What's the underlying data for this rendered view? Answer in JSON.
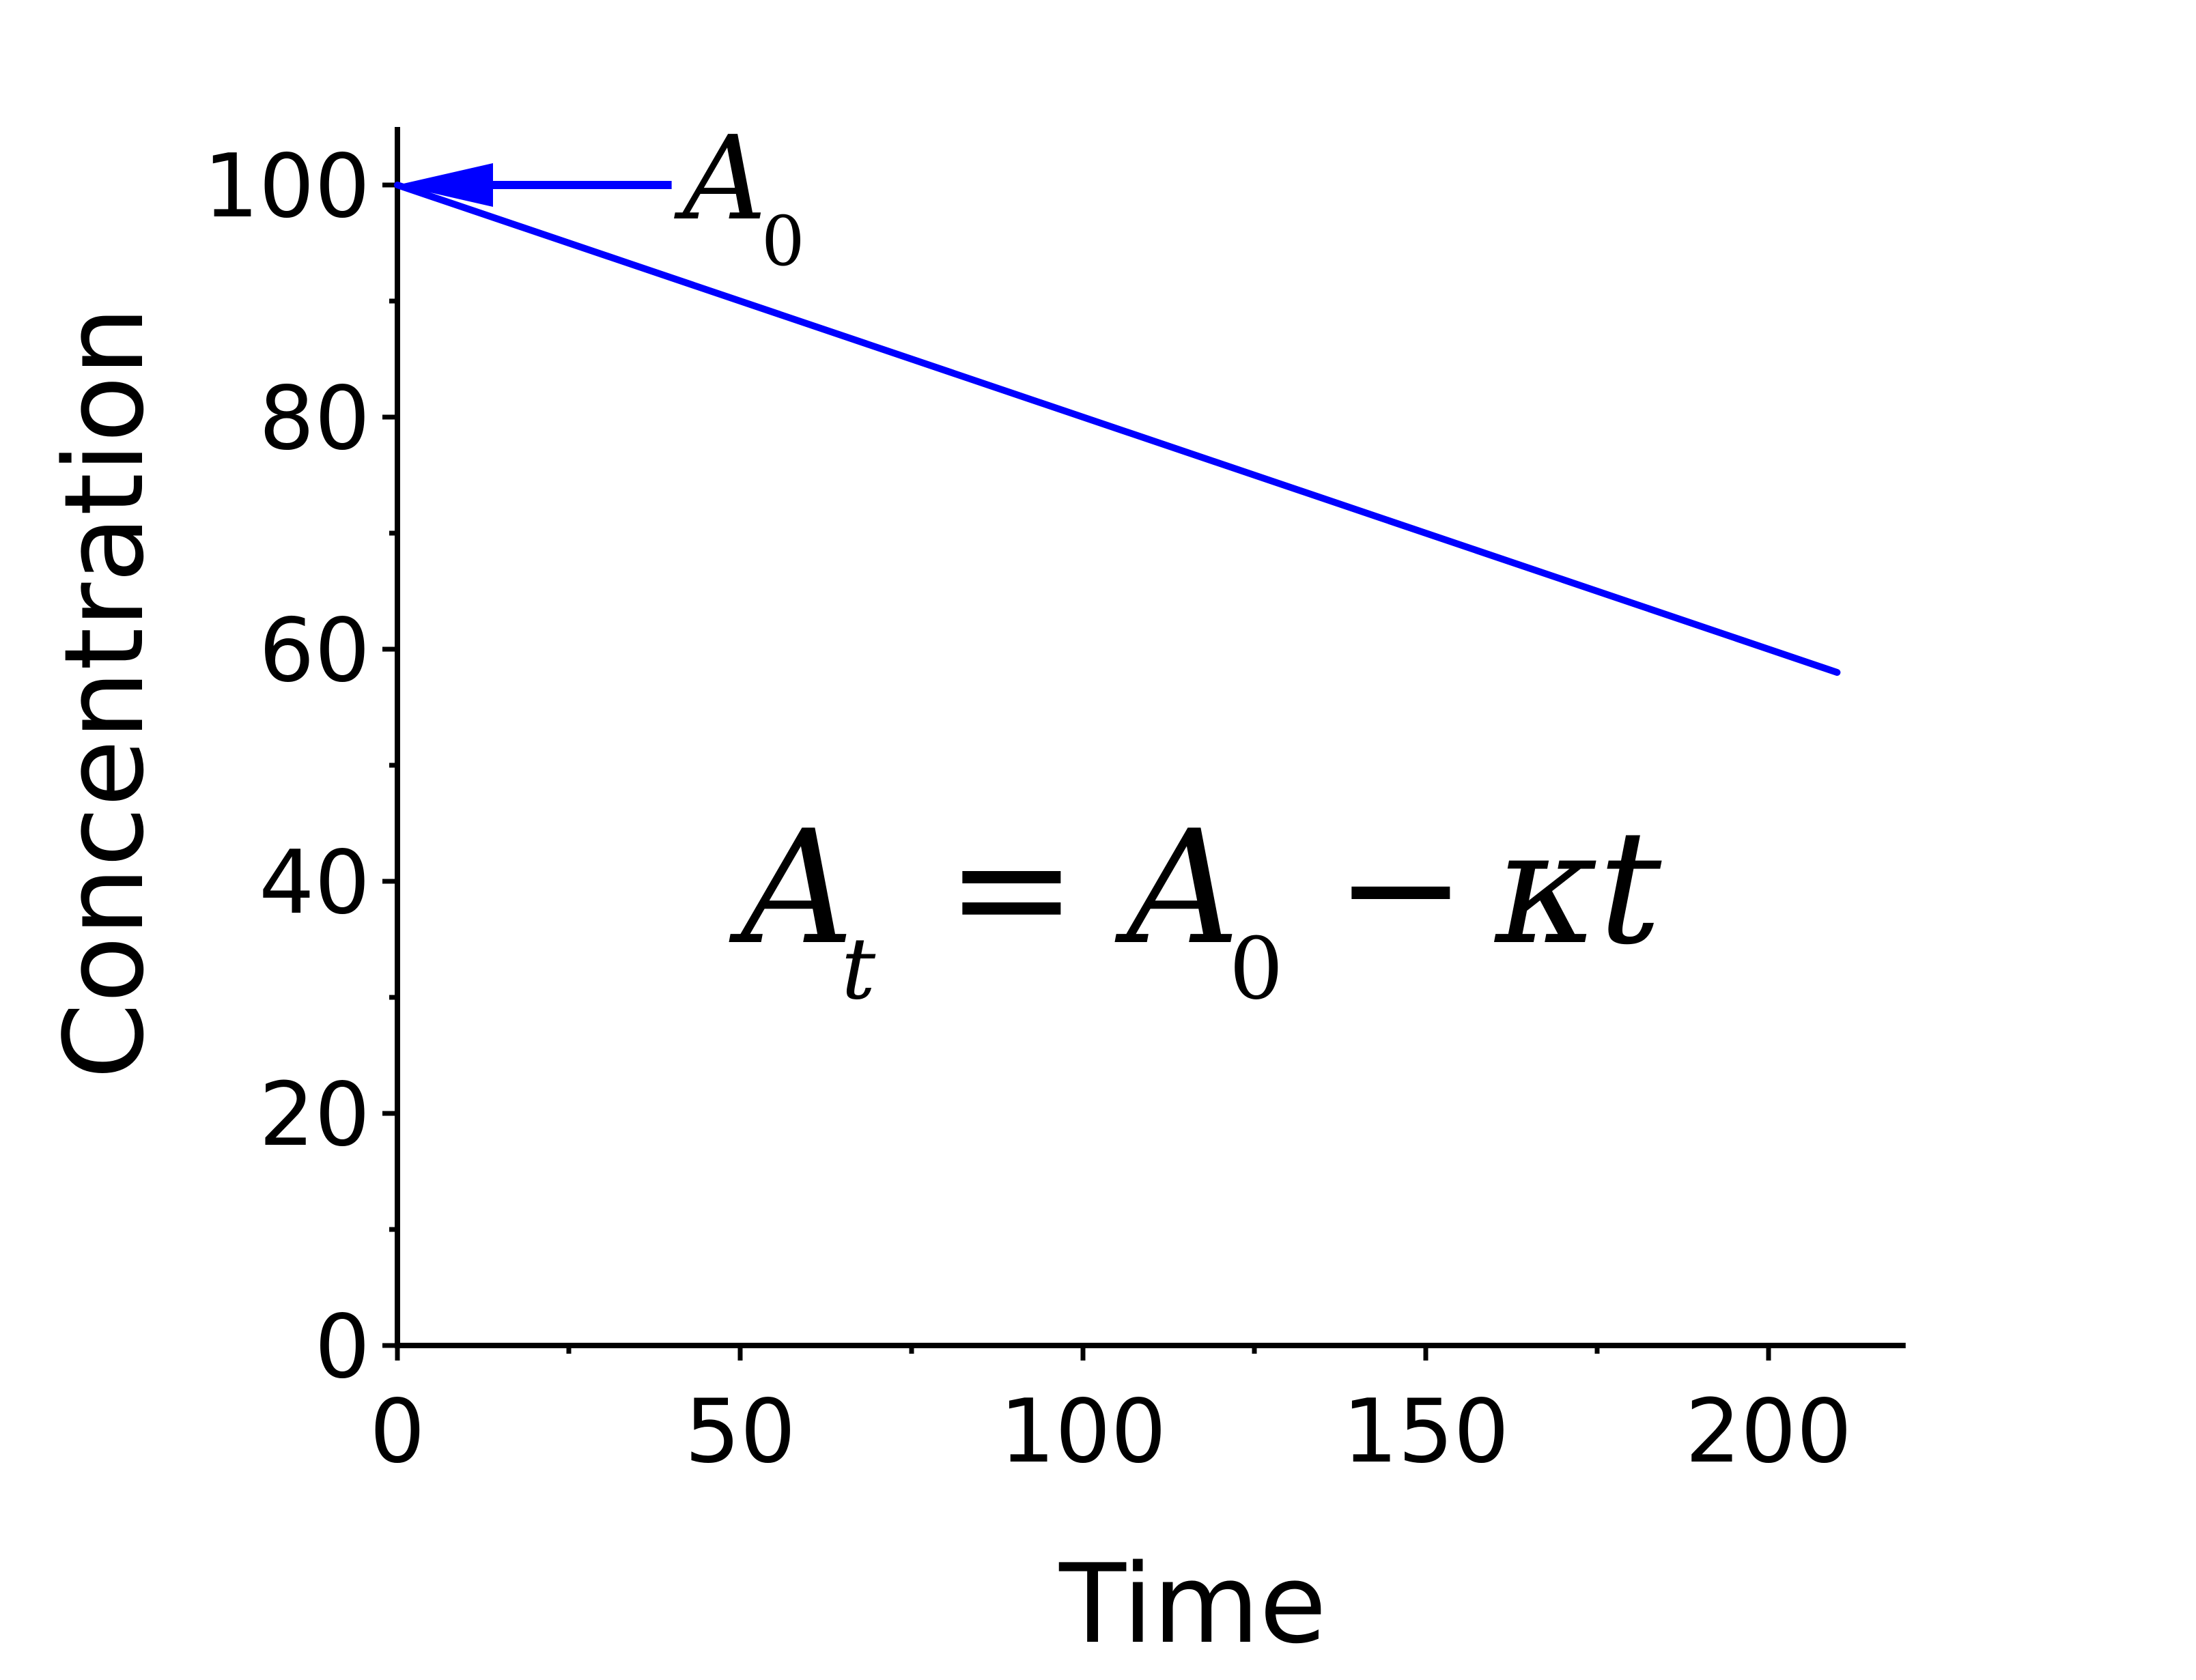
{
  "chart_data": {
    "type": "line",
    "xlabel": "Time",
    "ylabel": "Concentration",
    "xlim": [
      0,
      220
    ],
    "ylim": [
      0,
      105
    ],
    "x_ticks": [
      "0",
      "50",
      "100",
      "150",
      "200"
    ],
    "y_ticks": [
      "0",
      "20",
      "40",
      "60",
      "80",
      "100"
    ],
    "x_tick_values": [
      0,
      50,
      100,
      150,
      200
    ],
    "y_tick_values": [
      0,
      20,
      40,
      60,
      80,
      100
    ],
    "x_minor_tick_values": [
      25,
      75,
      125,
      175
    ],
    "y_minor_tick_values": [
      10,
      30,
      50,
      70,
      90
    ],
    "grid": false,
    "series": [
      {
        "x": [
          0,
          210
        ],
        "y": [
          100,
          58
        ],
        "color": "#0000ff"
      }
    ],
    "annotations": {
      "a0_label": {
        "base": "A",
        "sub": "0",
        "arrow_to": [
          0,
          100
        ],
        "arrow_from": [
          40,
          100
        ]
      },
      "equation": {
        "lhs_base": "A",
        "lhs_sub": "t",
        "equals": "=",
        "rhs_base": "A",
        "rhs_sub": "0",
        "minus": "−",
        "term": "κt"
      }
    }
  }
}
